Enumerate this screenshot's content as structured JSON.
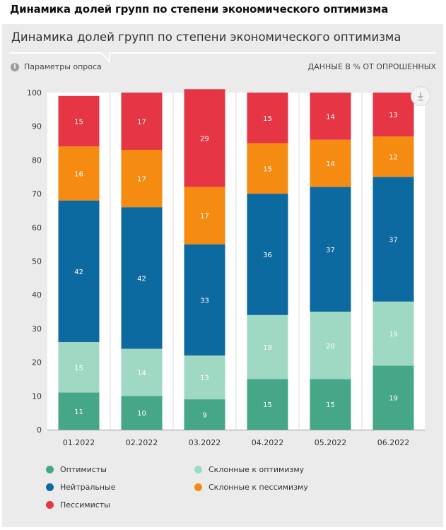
{
  "page": {
    "heading": "Динамика долей групп по степени экономического оптимизма"
  },
  "card": {
    "title": "Динамика долей групп по степени экономического оптимизма",
    "params_label": "Параметры опроса",
    "info_icon": "info-icon",
    "units_label": "ДАННЫЕ В % ОТ ОПРОШЕННЫХ",
    "download_icon": "download-icon"
  },
  "chart_data": {
    "type": "bar",
    "stacked": true,
    "categories": [
      "01.2022",
      "02.2022",
      "03.2022",
      "04.2022",
      "05.2022",
      "06.2022"
    ],
    "ylim": [
      0,
      100
    ],
    "yticks": [
      0,
      10,
      20,
      30,
      40,
      50,
      60,
      70,
      80,
      90,
      100
    ],
    "grid": false,
    "legend_position": "bottom",
    "series": [
      {
        "name": "Оптимисты",
        "color": "#45a788",
        "label_color": "#ffffff",
        "values": [
          11,
          10,
          9,
          15,
          15,
          19
        ]
      },
      {
        "name": "Склонные к оптимизму",
        "color": "#9fd9c4",
        "label_color": "#ffffff",
        "values": [
          15,
          14,
          13,
          19,
          20,
          19
        ]
      },
      {
        "name": "Нейтральные",
        "color": "#0d6aa0",
        "label_color": "#ffffff",
        "values": [
          42,
          42,
          33,
          36,
          37,
          37
        ]
      },
      {
        "name": "Склонные к пессимизму",
        "color": "#f68b12",
        "label_color": "#ffffff",
        "values": [
          16,
          17,
          17,
          15,
          14,
          12
        ]
      },
      {
        "name": "Пессимисты",
        "color": "#e63646",
        "label_color": "#ffffff",
        "values": [
          15,
          17,
          29,
          15,
          14,
          13
        ]
      }
    ]
  }
}
